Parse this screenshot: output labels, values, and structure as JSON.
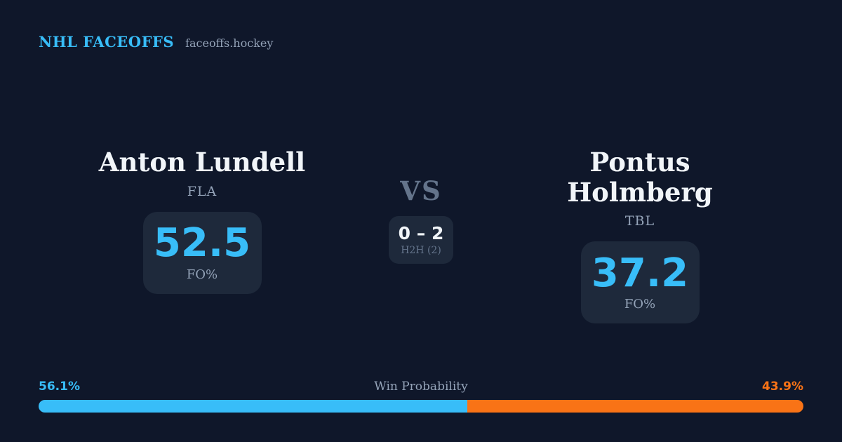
{
  "header": {
    "brand": "NHL FACEOFFS",
    "site": "faceoffs.hockey"
  },
  "matchup": {
    "left_player": {
      "name": "Anton Lundell",
      "team": "FLA",
      "fo_pct": "52.5",
      "fo_label": "FO%"
    },
    "right_player": {
      "name": "Pontus Holmberg",
      "team": "TBL",
      "fo_pct": "37.2",
      "fo_label": "FO%"
    },
    "vs_label": "VS",
    "h2h": {
      "score": "0 – 2",
      "label": "H2H (2)"
    }
  },
  "win_probability": {
    "title": "Win Probability",
    "left_pct_label": "56.1%",
    "right_pct_label": "43.9%",
    "left_value": 56.1,
    "right_value": 43.9
  },
  "colors": {
    "background": "#0f172a",
    "card": "#1e293b",
    "accent_blue": "#38bdf8",
    "accent_orange": "#f97316",
    "text_primary": "#f1f5f9",
    "text_muted": "#94a3b8",
    "text_faint": "#64748b"
  }
}
